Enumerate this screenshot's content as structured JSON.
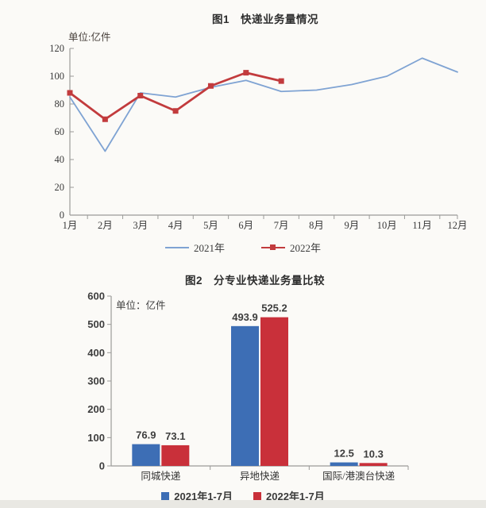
{
  "page": {
    "background": "#fbfaf7",
    "accent_blue": "#7fa3d3",
    "accent_red": "#c23b3d"
  },
  "chart_data": [
    {
      "type": "line",
      "title": "图1　快递业务量情况",
      "unit_label": "单位:亿件",
      "categories": [
        "1月",
        "2月",
        "3月",
        "4月",
        "5月",
        "6月",
        "7月",
        "8月",
        "9月",
        "10月",
        "11月",
        "12月"
      ],
      "series": [
        {
          "name": "2021年",
          "color": "#7fa3d3",
          "marker": "none",
          "values": [
            85,
            46,
            88,
            85,
            92,
            97,
            89,
            90,
            94,
            100,
            113,
            103
          ]
        },
        {
          "name": "2022年",
          "color": "#c23b3d",
          "marker": "square",
          "values": [
            88,
            69,
            86,
            75,
            93,
            102.5,
            96.5
          ]
        }
      ],
      "ylim": [
        0,
        120
      ],
      "ytick_step": 20,
      "grid": false,
      "legend_position": "bottom"
    },
    {
      "type": "bar",
      "title": "图2　分专业快递业务量比较",
      "unit_label": "单位：亿件",
      "categories": [
        "同城快递",
        "异地快递",
        "国际/港澳台快递"
      ],
      "series": [
        {
          "name": "2021年1-7月",
          "color": "#3d6eb5",
          "values": [
            76.9,
            493.9,
            12.5
          ]
        },
        {
          "name": "2022年1-7月",
          "color": "#c9303a",
          "values": [
            73.1,
            525.2,
            10.3
          ]
        }
      ],
      "ylim": [
        0,
        600
      ],
      "ytick_step": 100,
      "value_labels": true,
      "grid": false,
      "legend_position": "bottom"
    }
  ]
}
